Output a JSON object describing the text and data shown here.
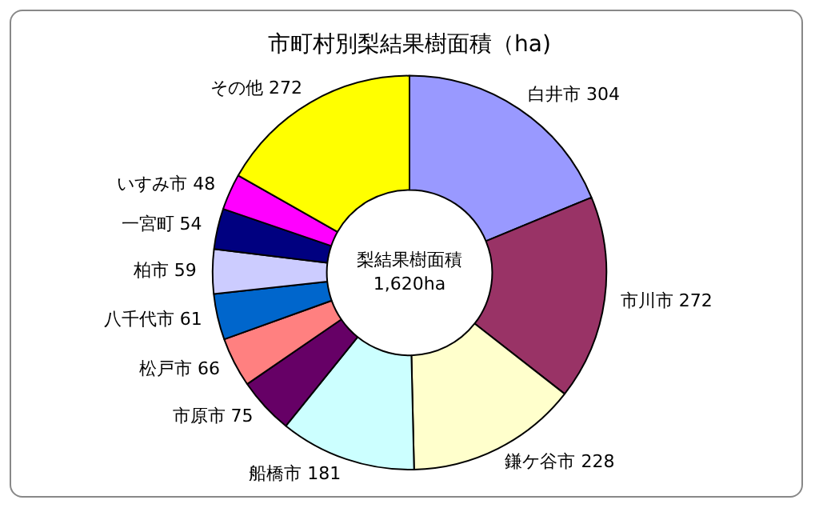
{
  "chart_data": {
    "type": "donut",
    "title": "市町村別梨結果樹面積（ha)",
    "categories": [
      "白井市",
      "市川市",
      "鎌ケ谷市",
      "船橋市",
      "市原市",
      "松戸市",
      "八千代市",
      "柏市",
      "一宮町",
      "いすみ市",
      "その他"
    ],
    "values": [
      304,
      272,
      228,
      181,
      75,
      66,
      61,
      59,
      54,
      48,
      272
    ],
    "colors": [
      "#9999ff",
      "#993366",
      "#ffffcc",
      "#ccffff",
      "#660066",
      "#ff8080",
      "#0066cc",
      "#ccccff",
      "#000080",
      "#ff00ff",
      "#ffff00"
    ],
    "data_labels": true,
    "annotations": [
      "梨結果樹面積",
      "1,620ha"
    ],
    "legend": false
  }
}
